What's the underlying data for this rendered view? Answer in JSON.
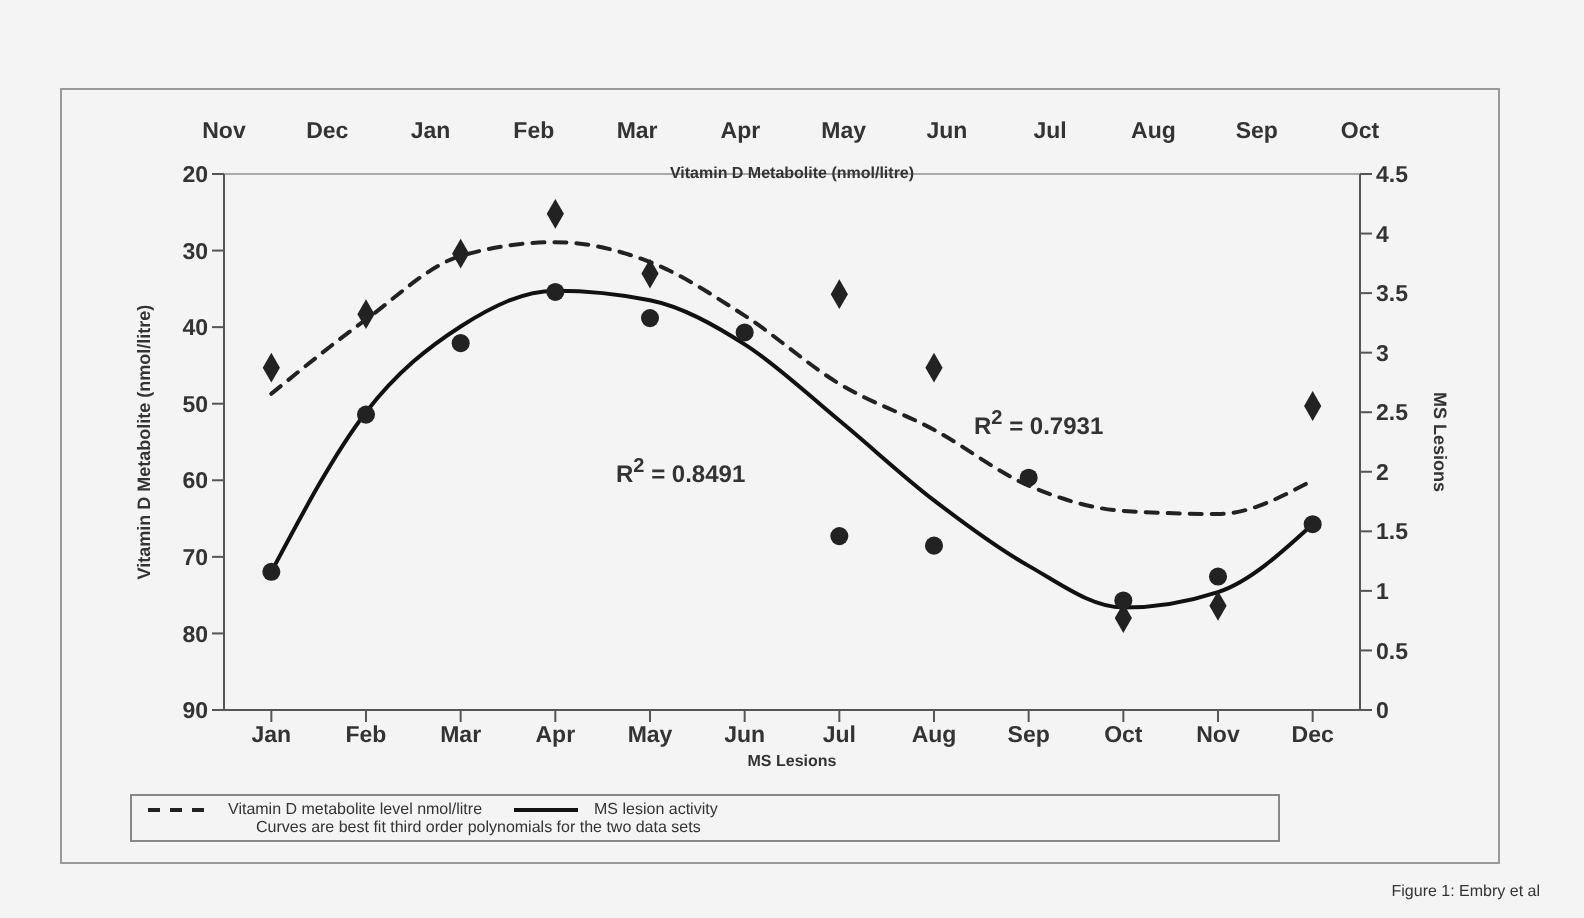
{
  "chart_data": {
    "type": "line",
    "xlabel": "MS Lesions",
    "x2label": "Vitamin D Metabolite (nmol/litre)",
    "ylabel": "Vitamin D Metabolite (nmol/litre)",
    "y2label": "MS Lesions",
    "categories": [
      "Jan",
      "Feb",
      "Mar",
      "Apr",
      "May",
      "Jun",
      "Jul",
      "Aug",
      "Sep",
      "Oct",
      "Nov",
      "Dec"
    ],
    "ylim": [
      90,
      20
    ],
    "yticks": [
      20,
      30,
      40,
      50,
      60,
      70,
      80,
      90
    ],
    "y2lim": [
      0,
      4.5
    ],
    "y2ticks": [
      0,
      0.5,
      1,
      1.5,
      2,
      2.5,
      3,
      3.5,
      4,
      4.5
    ],
    "series": [
      {
        "name": "Vitamin D metabolite level nmol/litre",
        "line_style": "dashed",
        "color": "#222222",
        "values": [
          48.7,
          39,
          30.7,
          28.9,
          31.5,
          38.5,
          47.4,
          53.4,
          60.7,
          64,
          64.4,
          60
        ]
      },
      {
        "name": "MS lesion activity",
        "axis": "y2",
        "line_style": "solid",
        "color": "#111111",
        "values": [
          1.16,
          2.5,
          3.22,
          3.52,
          3.44,
          3.07,
          2.43,
          1.76,
          1.21,
          0.86,
          0.99,
          1.56
        ]
      },
      {
        "type": "scatter",
        "marker": "diamond",
        "color": "#222222",
        "values": [
          45.3,
          38.3,
          30.4,
          25.2,
          33,
          null,
          35.7,
          45.3,
          null,
          78,
          76.4,
          50.3
        ]
      },
      {
        "type": "scatter",
        "axis": "y2",
        "marker": "circle",
        "color": "#222222",
        "values": [
          1.16,
          2.48,
          3.08,
          3.51,
          3.29,
          3.17,
          1.46,
          1.38,
          1.95,
          0.92,
          1.12,
          1.56
        ]
      }
    ],
    "legend": "bottom",
    "annotations": [
      "R$^{2}$ = 0.8491",
      "R$^{2}$ = 0.7931",
      "Curves are best fit third order polynomials for the two data sets",
      "Figure 1: Embry et al",
      "Nov",
      "Dec",
      "Jan",
      "Feb",
      "Mar",
      "Apr",
      "May",
      "Jun",
      "Jul",
      "Aug",
      "Sep",
      "Oct"
    ]
  }
}
